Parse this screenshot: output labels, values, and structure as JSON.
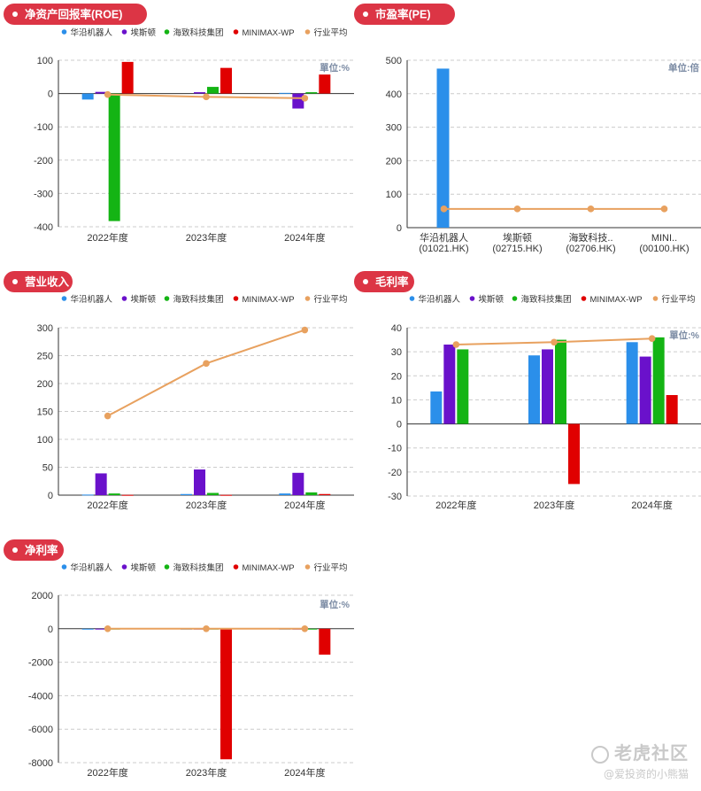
{
  "colors": {
    "badge": "#dc3545",
    "series": [
      "#2b8fea",
      "#6a11cb",
      "#14b414",
      "#e00000",
      "#e8a15f"
    ],
    "axis": "#333333",
    "grid": "#cccccc",
    "unit": "#7a8aa3"
  },
  "watermark": {
    "brand": "老虎社区",
    "user": "@爱投资的小熊猫"
  },
  "chart_data": [
    {
      "id": "roe",
      "type": "bar",
      "title": "净资产回报率(ROE)",
      "unit": "單位:%",
      "legend": [
        "华沿机器人",
        "埃斯顿",
        "海致科技集团",
        "MINIMAX-WP",
        "行业平均"
      ],
      "categories": [
        "2022年度",
        "2023年度",
        "2024年度"
      ],
      "yticks": [
        100,
        0,
        -100,
        -200,
        -300,
        -400
      ],
      "ylim": [
        -400,
        100
      ],
      "series": [
        {
          "name": "华沿机器人",
          "values": [
            -18,
            null,
            2
          ]
        },
        {
          "name": "埃斯顿",
          "values": [
            5,
            4,
            -45
          ]
        },
        {
          "name": "海致科技集团",
          "values": [
            -383,
            20,
            4
          ]
        },
        {
          "name": "MINIMAX-WP",
          "values": [
            95,
            77,
            57
          ]
        }
      ],
      "line": {
        "name": "行业平均",
        "values": [
          -3,
          -10,
          -14
        ]
      }
    },
    {
      "id": "pe",
      "type": "bar",
      "title": "市盈率(PE)",
      "unit": "单位:倍",
      "legend": [],
      "categories": [
        "华沿机器人\n(01021.HK)",
        "埃斯顿\n(02715.HK)",
        "海致科技..\n(02706.HK)",
        "MINI..\n(00100.HK)"
      ],
      "yticks": [
        500,
        400,
        300,
        200,
        100,
        0
      ],
      "ylim": [
        0,
        500
      ],
      "bars": [
        475,
        null,
        null,
        null
      ],
      "line": {
        "name": "行业平均",
        "values": [
          56,
          56,
          56,
          56
        ]
      }
    },
    {
      "id": "revenue",
      "type": "bar",
      "title": "营业收入",
      "unit": "",
      "legend": [
        "华沿机器人",
        "埃斯顿",
        "海致科技集团",
        "MINIMAX-WP",
        "行业平均"
      ],
      "categories": [
        "2022年度",
        "2023年度",
        "2024年度"
      ],
      "yticks": [
        300,
        250,
        200,
        150,
        100,
        50,
        0
      ],
      "ylim": [
        0,
        300
      ],
      "series": [
        {
          "name": "华沿机器人",
          "values": [
            1,
            2,
            3
          ]
        },
        {
          "name": "埃斯顿",
          "values": [
            39,
            46,
            40
          ]
        },
        {
          "name": "海致科技集团",
          "values": [
            3,
            4,
            5
          ]
        },
        {
          "name": "MINIMAX-WP",
          "values": [
            0.5,
            0.5,
            2
          ]
        }
      ],
      "line": {
        "name": "行业平均",
        "values": [
          142,
          236,
          296
        ]
      }
    },
    {
      "id": "gross",
      "type": "bar",
      "title": "毛利率",
      "unit": "單位:%",
      "legend": [
        "华沿机器人",
        "埃斯顿",
        "海致科技集团",
        "MINIMAX-WP",
        "行业平均"
      ],
      "categories": [
        "2022年度",
        "2023年度",
        "2024年度"
      ],
      "yticks": [
        40,
        30,
        20,
        10,
        0,
        -10,
        -20,
        -30
      ],
      "ylim": [
        -30,
        40
      ],
      "series": [
        {
          "name": "华沿机器人",
          "values": [
            13.5,
            28.5,
            34
          ]
        },
        {
          "name": "埃斯顿",
          "values": [
            33,
            31,
            28
          ]
        },
        {
          "name": "海致科技集团",
          "values": [
            31,
            35,
            36
          ]
        },
        {
          "name": "MINIMAX-WP",
          "values": [
            null,
            -25,
            12
          ]
        }
      ],
      "line": {
        "name": "行业平均",
        "values": [
          33,
          34,
          35.5
        ]
      }
    },
    {
      "id": "net",
      "type": "bar",
      "title": "净利率",
      "unit": "單位:%",
      "legend": [
        "华沿机器人",
        "埃斯顿",
        "海致科技集团",
        "MINIMAX-WP",
        "行业平均"
      ],
      "categories": [
        "2022年度",
        "2023年度",
        "2024年度"
      ],
      "yticks": [
        2000,
        0,
        -2000,
        -4000,
        -6000,
        -8000
      ],
      "ylim": [
        -8000,
        2000
      ],
      "series": [
        {
          "name": "华沿机器人",
          "values": [
            -30,
            -20,
            -10
          ]
        },
        {
          "name": "埃斯顿",
          "values": [
            5,
            3,
            1
          ]
        },
        {
          "name": "海致科技集团",
          "values": [
            5,
            4,
            3
          ]
        },
        {
          "name": "MINIMAX-WP",
          "values": [
            null,
            -7800,
            -1550
          ]
        }
      ],
      "line": {
        "name": "行业平均",
        "values": [
          0,
          0,
          0
        ]
      }
    }
  ]
}
